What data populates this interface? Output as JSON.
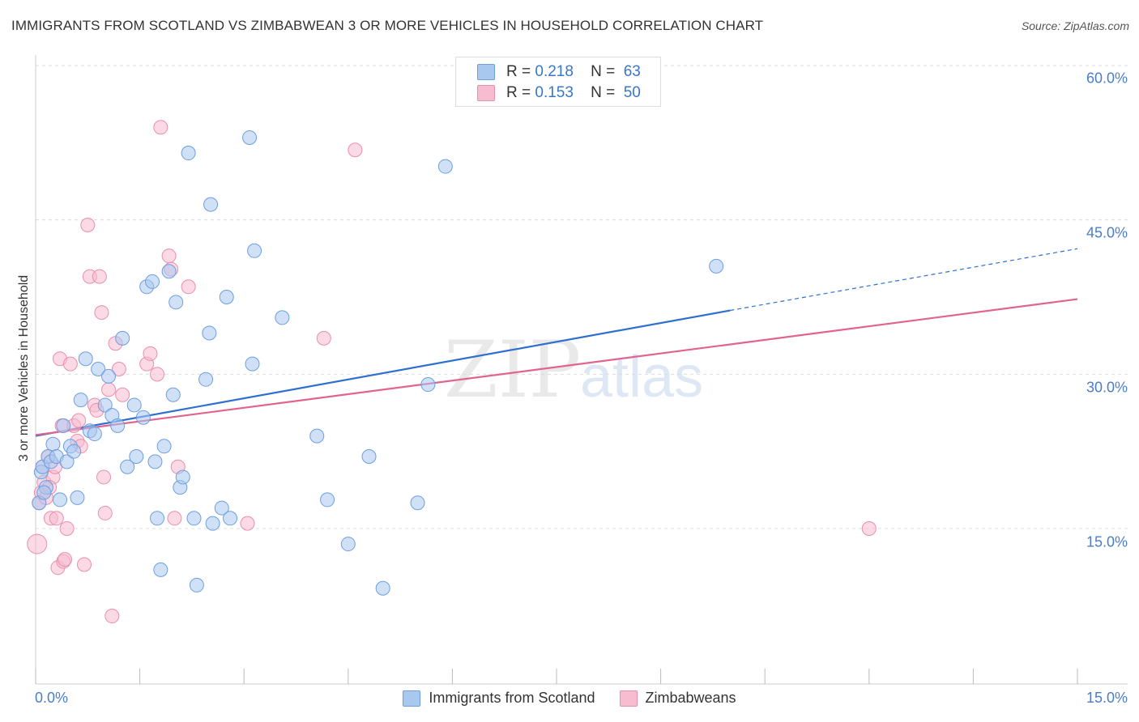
{
  "header": {
    "title": "IMMIGRANTS FROM SCOTLAND VS ZIMBABWEAN 3 OR MORE VEHICLES IN HOUSEHOLD CORRELATION CHART",
    "source": "Source: ZipAtlas.com"
  },
  "legend": {
    "rows": [
      {
        "r_label": "R =",
        "r_value": "0.218",
        "n_label": "N =",
        "n_value": "63"
      },
      {
        "r_label": "R =",
        "r_value": "0.153",
        "n_label": "N =",
        "n_value": "50"
      }
    ]
  },
  "watermark": {
    "zip": "ZIP",
    "atlas": "atlas"
  },
  "colors": {
    "scotland_fill": "#a9c8f0",
    "scotland_stroke": "#6d9ee0",
    "scotland_line": "#2f6fcf",
    "zimbabwe_fill": "#f7bccf",
    "zimbabwe_stroke": "#e98fab",
    "zimbabwe_line": "#e0648f",
    "tick_label": "#4a7ec9"
  },
  "chart_data": {
    "type": "scatter",
    "title": "IMMIGRANTS FROM SCOTLAND VS ZIMBABWEAN 3 OR MORE VEHICLES IN HOUSEHOLD CORRELATION CHART",
    "xlabel": "",
    "ylabel": "3 or more Vehicles in Household",
    "xlim": [
      0,
      15
    ],
    "ylim": [
      0,
      62
    ],
    "x_tick_labels": [
      "0.0%",
      "15.0%"
    ],
    "y_ticks": [
      15,
      30,
      45,
      60
    ],
    "y_tick_labels": [
      "15.0%",
      "30.0%",
      "45.0%",
      "60.0%"
    ],
    "grid": true,
    "legend_position": "top-center",
    "series": [
      {
        "name": "Immigrants from Scotland",
        "r": 0.218,
        "n": 63,
        "trend": {
          "x0": 0,
          "y0": 24.0,
          "x1": 10.0,
          "y1": 36.2,
          "dash_to_x": 15.0,
          "dash_to_y": 42.2
        },
        "points": [
          [
            0.05,
            17.5
          ],
          [
            0.08,
            20.5
          ],
          [
            0.1,
            21.0
          ],
          [
            0.15,
            19.0
          ],
          [
            0.18,
            22.0
          ],
          [
            0.22,
            21.5
          ],
          [
            0.25,
            23.2
          ],
          [
            0.3,
            22.0
          ],
          [
            0.35,
            17.8
          ],
          [
            0.4,
            25.0
          ],
          [
            0.45,
            21.5
          ],
          [
            0.5,
            23.0
          ],
          [
            0.6,
            18.0
          ],
          [
            0.65,
            27.5
          ],
          [
            0.72,
            31.5
          ],
          [
            0.78,
            24.5
          ],
          [
            0.85,
            24.2
          ],
          [
            0.9,
            30.5
          ],
          [
            1.0,
            27.0
          ],
          [
            1.05,
            29.8
          ],
          [
            1.1,
            26.0
          ],
          [
            1.18,
            25.0
          ],
          [
            1.25,
            33.5
          ],
          [
            1.32,
            21.0
          ],
          [
            1.42,
            27.0
          ],
          [
            1.45,
            22.0
          ],
          [
            1.55,
            25.8
          ],
          [
            1.6,
            38.5
          ],
          [
            1.68,
            39.0
          ],
          [
            1.72,
            21.5
          ],
          [
            1.75,
            16.0
          ],
          [
            1.8,
            11.0
          ],
          [
            1.85,
            23.0
          ],
          [
            1.92,
            40.0
          ],
          [
            1.98,
            28.0
          ],
          [
            2.02,
            37.0
          ],
          [
            2.08,
            19.0
          ],
          [
            2.12,
            20.0
          ],
          [
            2.2,
            51.5
          ],
          [
            2.28,
            16.0
          ],
          [
            2.32,
            9.5
          ],
          [
            2.45,
            29.5
          ],
          [
            2.5,
            34.0
          ],
          [
            2.52,
            46.5
          ],
          [
            2.55,
            15.5
          ],
          [
            2.68,
            17.0
          ],
          [
            2.75,
            37.5
          ],
          [
            2.8,
            16.0
          ],
          [
            3.08,
            53.0
          ],
          [
            3.12,
            31.0
          ],
          [
            3.15,
            42.0
          ],
          [
            3.55,
            35.5
          ],
          [
            4.05,
            24.0
          ],
          [
            4.2,
            17.8
          ],
          [
            4.5,
            13.5
          ],
          [
            4.8,
            22.0
          ],
          [
            5.0,
            9.2
          ],
          [
            5.5,
            17.5
          ],
          [
            5.65,
            29.0
          ],
          [
            5.9,
            50.2
          ],
          [
            9.8,
            40.5
          ],
          [
            0.12,
            18.5
          ],
          [
            0.55,
            22.5
          ]
        ]
      },
      {
        "name": "Zimbabweans",
        "r": 0.153,
        "n": 50,
        "trend": {
          "x0": 0,
          "y0": 24.1,
          "x1": 15.0,
          "y1": 37.3
        },
        "points": [
          [
            0.02,
            13.5
          ],
          [
            0.05,
            17.5
          ],
          [
            0.08,
            18.5
          ],
          [
            0.12,
            19.5
          ],
          [
            0.15,
            18.0
          ],
          [
            0.18,
            22.0
          ],
          [
            0.22,
            16.0
          ],
          [
            0.25,
            20.0
          ],
          [
            0.28,
            21.0
          ],
          [
            0.3,
            16.0
          ],
          [
            0.32,
            11.2
          ],
          [
            0.35,
            31.5
          ],
          [
            0.38,
            25.0
          ],
          [
            0.4,
            11.8
          ],
          [
            0.45,
            15.0
          ],
          [
            0.5,
            31.0
          ],
          [
            0.55,
            25.0
          ],
          [
            0.6,
            23.5
          ],
          [
            0.62,
            25.5
          ],
          [
            0.65,
            23.0
          ],
          [
            0.7,
            11.5
          ],
          [
            0.75,
            44.5
          ],
          [
            0.78,
            39.5
          ],
          [
            0.85,
            27.0
          ],
          [
            0.92,
            39.5
          ],
          [
            0.95,
            36.0
          ],
          [
            0.98,
            20.0
          ],
          [
            1.0,
            16.5
          ],
          [
            1.05,
            28.5
          ],
          [
            1.1,
            6.5
          ],
          [
            1.15,
            33.0
          ],
          [
            1.2,
            30.5
          ],
          [
            1.25,
            28.0
          ],
          [
            1.6,
            31.0
          ],
          [
            1.65,
            32.0
          ],
          [
            1.75,
            30.0
          ],
          [
            1.8,
            54.0
          ],
          [
            1.92,
            41.5
          ],
          [
            1.95,
            40.2
          ],
          [
            2.0,
            16.0
          ],
          [
            2.05,
            21.0
          ],
          [
            2.2,
            38.5
          ],
          [
            3.05,
            15.5
          ],
          [
            4.15,
            33.5
          ],
          [
            4.6,
            51.8
          ],
          [
            12.0,
            15.0
          ],
          [
            0.1,
            21.0
          ],
          [
            0.2,
            19.0
          ],
          [
            0.42,
            12.0
          ],
          [
            0.88,
            26.5
          ]
        ]
      }
    ]
  },
  "bottom_legend": {
    "items": [
      {
        "label": "Immigrants from Scotland"
      },
      {
        "label": "Zimbabweans"
      }
    ]
  }
}
